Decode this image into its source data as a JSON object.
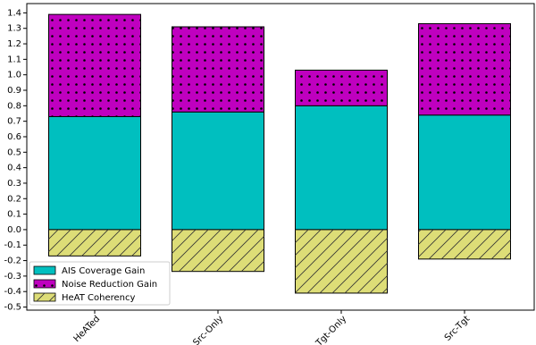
{
  "chart_data": {
    "type": "stacked-bar",
    "categories": [
      "HeATed",
      "Src-Only",
      "Tgt-Only",
      "Src-Tgt"
    ],
    "series": [
      {
        "name": "AIS Coverage Gain",
        "color": "#00bfbf",
        "values": [
          0.73,
          0.76,
          0.8,
          0.74
        ]
      },
      {
        "name": "Noise Reduction Gain",
        "color": "#bf00bf",
        "values": [
          0.66,
          0.55,
          0.23,
          0.59
        ]
      },
      {
        "name": "HeAT Coherency",
        "color": "#dddd77",
        "values": [
          -0.17,
          -0.27,
          -0.41,
          -0.19
        ]
      }
    ],
    "ylim": [
      -0.52,
      1.46
    ],
    "yticks": [
      -0.5,
      -0.4,
      -0.3,
      -0.2,
      -0.1,
      {
        "value": 0,
        "label": "0.0"
      },
      0.1,
      0.2,
      0.3,
      0.4,
      0.5,
      0.6,
      0.7,
      0.8,
      0.9,
      {
        "value": 1,
        "label": "1.0"
      },
      1.1,
      1.2,
      1.3,
      1.4
    ],
    "legend": "lower left"
  }
}
